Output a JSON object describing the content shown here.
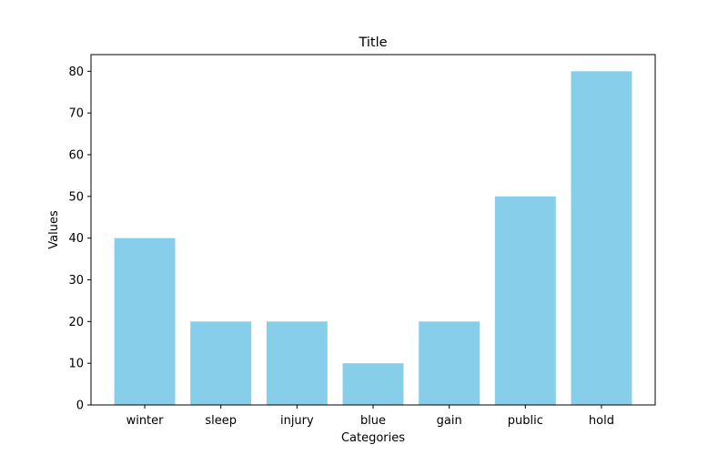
{
  "chart_data": {
    "type": "bar",
    "title": "Title",
    "xlabel": "Categories",
    "ylabel": "Values",
    "categories": [
      "winter",
      "sleep",
      "injury",
      "blue",
      "gain",
      "public",
      "hold"
    ],
    "values": [
      40,
      20,
      20,
      10,
      20,
      50,
      80
    ],
    "ylim": [
      0,
      84
    ],
    "yticks": [
      0,
      10,
      20,
      30,
      40,
      50,
      60,
      70,
      80
    ],
    "ytick_labels": [
      "0",
      "10",
      "20",
      "30",
      "40",
      "50",
      "60",
      "70",
      "80"
    ],
    "bar_color": "#87ceeb",
    "grid": false,
    "legend": "none"
  }
}
